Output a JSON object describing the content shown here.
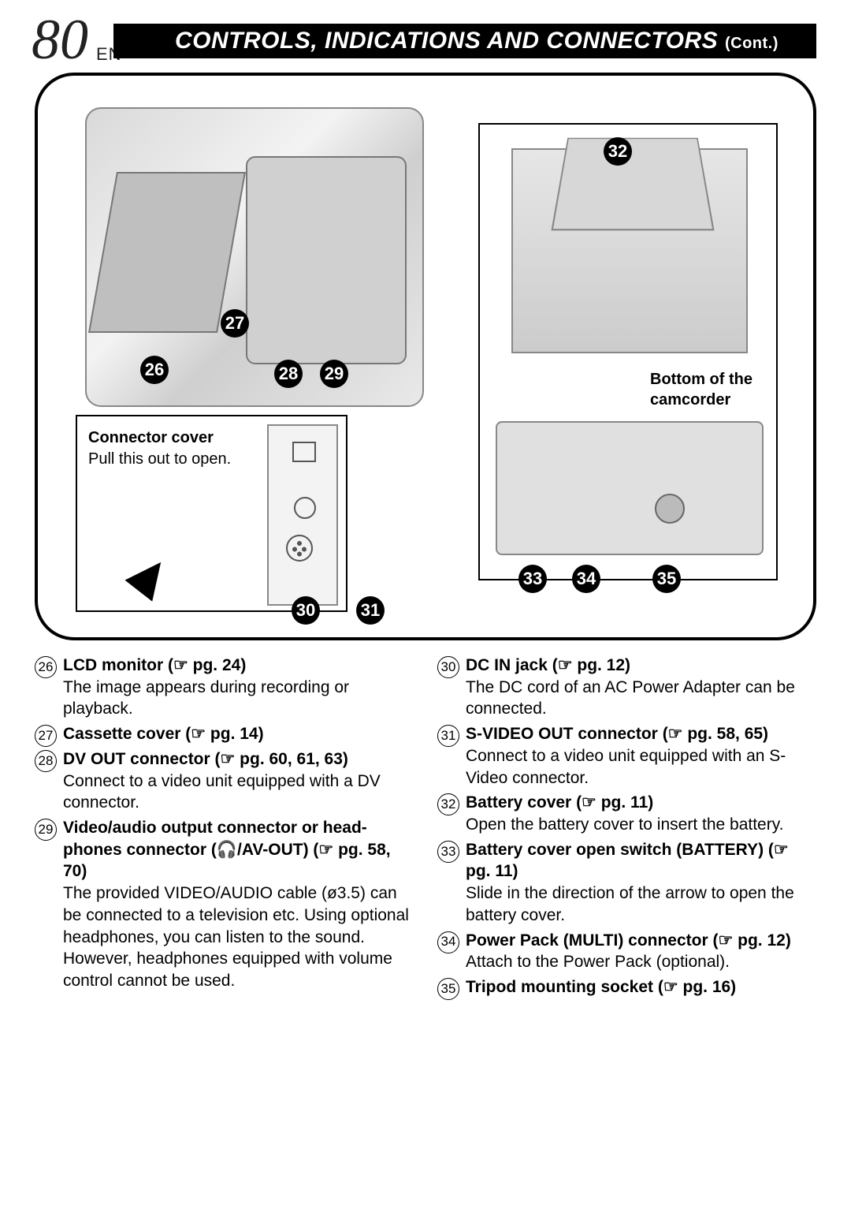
{
  "page": {
    "number": "80",
    "lang": "EN"
  },
  "header": {
    "title": "CONTROLS, INDICATIONS AND CONNECTORS",
    "cont": "(Cont.)"
  },
  "diagram": {
    "bottomLabel1": "Bottom of the",
    "bottomLabel2": "camcorder",
    "connCoverTitle": "Connector cover",
    "connCoverBody": "Pull this out to open."
  },
  "callouts": {
    "n26": "26",
    "n27": "27",
    "n28": "28",
    "n29": "29",
    "n30": "30",
    "n31": "31",
    "n32": "32",
    "n33": "33",
    "n34": "34",
    "n35": "35"
  },
  "left": [
    {
      "num": "26",
      "title": "LCD monitor (☞ pg. 24)",
      "body": "The image appears during recording or playback."
    },
    {
      "num": "27",
      "title": "Cassette cover (☞ pg. 14)",
      "body": ""
    },
    {
      "num": "28",
      "title": "DV OUT connector (☞ pg. 60, 61, 63)",
      "body": "Connect to a video unit equipped with a DV connector."
    },
    {
      "num": "29",
      "title": "Video/audio output connector or head-phones connector (🎧/AV-OUT) (☞ pg. 58, 70)",
      "body": "The provided VIDEO/AUDIO cable (ø3.5) can be connected to a television etc. Using optional headphones, you can listen to the sound. However, headphones equipped with volume control cannot be used."
    }
  ],
  "right": [
    {
      "num": "30",
      "title": "DC IN jack (☞ pg. 12)",
      "body": "The DC cord of an AC Power Adapter can be connected."
    },
    {
      "num": "31",
      "title": "S-VIDEO OUT connector (☞ pg. 58, 65)",
      "body": "Connect to a video unit equipped with an S-Video connector."
    },
    {
      "num": "32",
      "title": "Battery cover (☞ pg. 11)",
      "body": "Open the battery cover to insert the battery."
    },
    {
      "num": "33",
      "title": "Battery cover open switch (BATTERY) (☞ pg. 11)",
      "body": "Slide in the direction of the arrow to open the battery cover."
    },
    {
      "num": "34",
      "title": "Power Pack (MULTI) connector (☞ pg. 12)",
      "body": "Attach to the Power Pack (optional)."
    },
    {
      "num": "35",
      "title": "Tripod mounting socket (☞ pg. 16)",
      "body": ""
    }
  ]
}
